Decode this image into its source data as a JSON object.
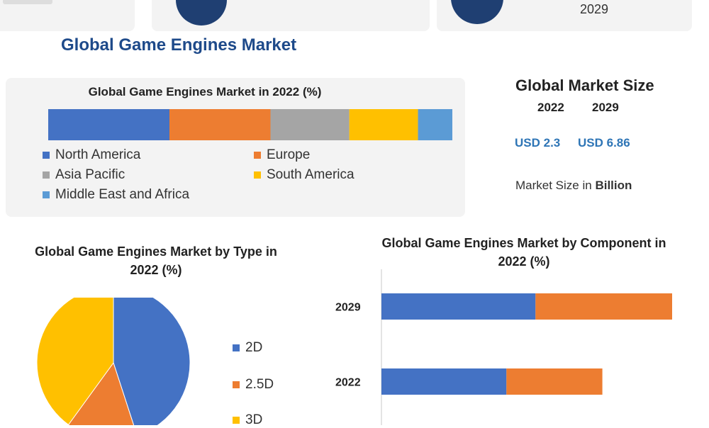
{
  "header": {
    "title": "Global Game Engines Market",
    "top_right_year": "2029"
  },
  "colors": {
    "north_america": "#4472c4",
    "europe": "#ed7d31",
    "asia_pacific": "#a5a5a5",
    "south_america": "#ffc000",
    "middle_east_africa": "#5b9bd5",
    "title_blue": "#1e4a8a",
    "value_blue": "#2e75b6",
    "badge_navy": "#1f3f72"
  },
  "market_size": {
    "title": "Global Market Size",
    "year_2022": "2022",
    "year_2029": "2029",
    "value_2022": "USD 2.3",
    "value_2029": "USD 6.86",
    "unit_prefix": "Market Size in ",
    "unit": "Billion"
  },
  "chart_data": [
    {
      "type": "bar",
      "orientation": "horizontal-stacked-100",
      "title": "Global Game Engines Market in 2022 (%)",
      "series": [
        {
          "name": "North America",
          "values": [
            30
          ]
        },
        {
          "name": "Europe",
          "values": [
            25
          ]
        },
        {
          "name": "Asia Pacific",
          "values": [
            19.5
          ]
        },
        {
          "name": "South America",
          "values": [
            17
          ]
        },
        {
          "name": "Middle East and Africa",
          "values": [
            8.5
          ]
        }
      ],
      "legend_position": "bottom"
    },
    {
      "type": "pie",
      "title": "Global Game Engines Market by Type in 2022 (%)",
      "labels": [
        "2D",
        "2.5D",
        "3D"
      ],
      "values": [
        45,
        15,
        40
      ],
      "legend_position": "right"
    },
    {
      "type": "bar",
      "orientation": "horizontal-stacked",
      "title": "Global Game Engines Market by Component in 2022 (%)",
      "categories": [
        "2029",
        "2022"
      ],
      "series": [
        {
          "values": [
            53,
            43
          ]
        },
        {
          "values": [
            47,
            33
          ]
        }
      ]
    }
  ]
}
